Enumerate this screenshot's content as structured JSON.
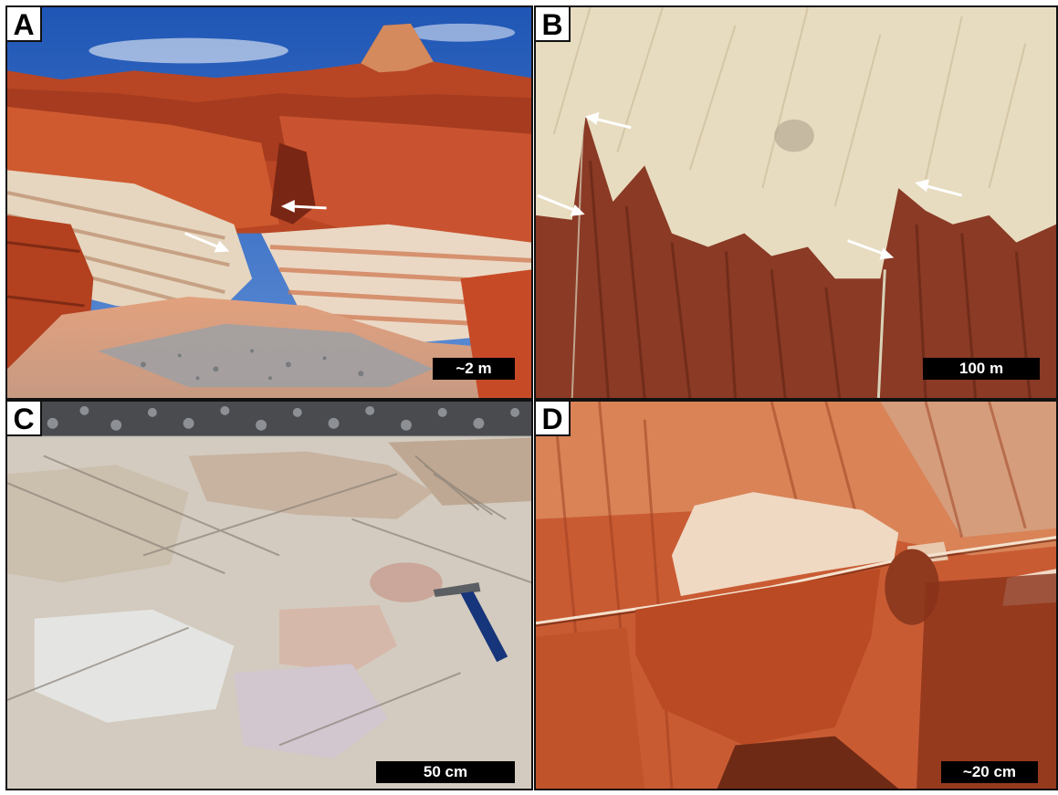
{
  "figure": {
    "panels": [
      {
        "letter": "A",
        "scale_label": "~2 m"
      },
      {
        "letter": "B",
        "scale_label": "100 m"
      },
      {
        "letter": "C",
        "scale_label": "50 cm"
      },
      {
        "letter": "D",
        "scale_label": "~20 cm"
      }
    ]
  },
  "colors": {
    "sky_blue": "#2f63b8",
    "red_sandstone": "#c6512a",
    "dark_red_sandstone": "#8e2f1a",
    "pale_sandstone": "#e6d6bf",
    "gravel_gray": "#8c8f94",
    "aerial_pale": "#e7dcc0",
    "aerial_red": "#8a3a25",
    "grey_sandstone": "#c6c2b9",
    "arrow_white": "#ffffff",
    "hammer_blue": "#17357a"
  },
  "icons": {
    "arrows_panel_a": "white-arrow-icon",
    "arrows_panel_b": "white-arrow-icon",
    "hammer_panel_c": "rock-hammer-icon"
  }
}
